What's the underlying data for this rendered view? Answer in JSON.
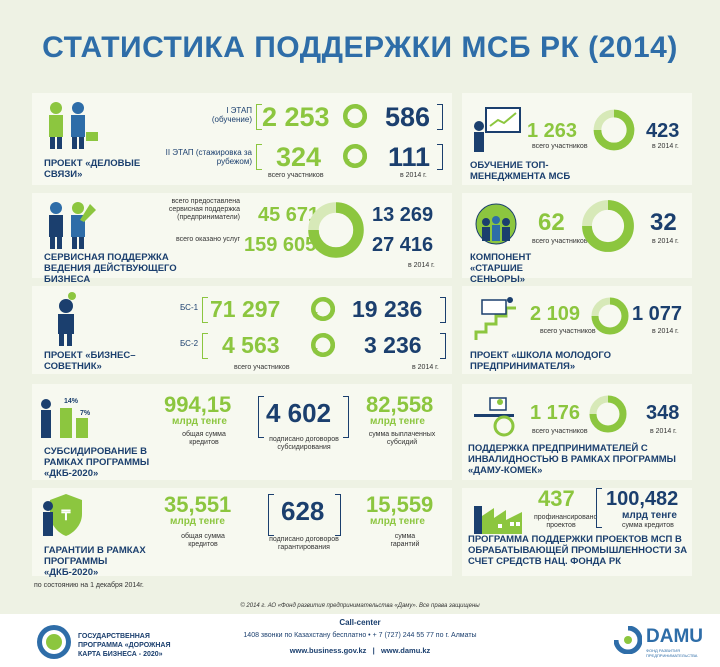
{
  "title": "СТАТИСТИКА ПОДДЕРЖКИ МСБ РК (2014)",
  "colors": {
    "green": "#8cc63f",
    "blue": "#1b3f6e",
    "accent": "#2e6da8"
  },
  "p1": {
    "label": "ПРОЕКТ «ДЕЛОВЫЕ СВЯЗИ»",
    "stage1": "I ЭТАП (обучение)",
    "stage1_a": "2 253",
    "stage1_b": "586",
    "stage2": "II ЭТАП (стажировка за рубежом)",
    "stage2_a": "324",
    "stage2_b": "111",
    "note_total": "всего участников",
    "note_year": "в 2014 г."
  },
  "p2": {
    "label": "ОБУЧЕНИЕ ТОП-МЕНЕДЖМЕНТА МСБ",
    "a": "1 263",
    "b": "423",
    "note_total": "всего участников",
    "note_year": "в 2014 г."
  },
  "p3": {
    "label": "СЕРВИСНАЯ ПОДДЕРЖКА ВЕДЕНИЯ ДЕЙСТВУЮЩЕГО БИЗНЕСА",
    "cap1": "всего предоставлена сервисная поддержка (предприниматели)",
    "cap2": "всего оказано услуг",
    "a1": "45 671",
    "a2": "159 605",
    "b1": "13 269",
    "b2": "27 416",
    "note_year": "в 2014 г."
  },
  "p4": {
    "label": "КОМПОНЕНТ «СТАРШИЕ СЕНЬОРЫ»",
    "a": "62",
    "b": "32",
    "note_total": "всего участников",
    "note_year": "в 2014 г."
  },
  "p5": {
    "label": "ПРОЕКТ «БИЗНЕС–СОВЕТНИК»",
    "bs1": "БС-1",
    "bs2": "БС-2",
    "a1": "71 297",
    "a2": "4 563",
    "b1": "19 236",
    "b2": "3 236",
    "note_total": "всего участников",
    "note_year": "в 2014 г."
  },
  "p6": {
    "label": "ПРОЕКТ «ШКОЛА МОЛОДОГО ПРЕДПРИНИМАТЕЛЯ»",
    "a": "2 109",
    "b": "1 077",
    "note_total": "всего участников",
    "note_year": "в 2014 г."
  },
  "p7": {
    "label": "СУБСИДИРОВАНИЕ В РАМКАХ ПРОГРАММЫ «ДКБ-2020»",
    "pct1": "14%",
    "pct2": "7%",
    "v1": "994,15",
    "v1_unit": "млрд тенге",
    "v1_cap": "общая сумма кредитов",
    "v2": "4 602",
    "v2_cap": "подписано договоров субсидирования",
    "v3": "82,558",
    "v3_unit": "млрд тенге",
    "v3_cap": "сумма выплаченных субсидий"
  },
  "p8": {
    "label": "ПОДДЕРЖКА ПРЕДПРИНИМАТЕЛЕЙ С ИНВАЛИДНОСТЬЮ В РАМКАХ ПРОГРАММЫ «ДАМУ-КОМЕК»",
    "a": "1 176",
    "b": "348",
    "note_total": "всего участников",
    "note_year": "в 2014 г."
  },
  "p9": {
    "label": "ГАРАНТИИ В РАМКАХ ПРОГРАММЫ «ДКБ-2020»",
    "v1": "35,551",
    "v1_unit": "млрд тенге",
    "v1_cap": "общая сумма кредитов",
    "v2": "628",
    "v2_cap": "подписано договоров гарантирования",
    "v3": "15,559",
    "v3_unit": "млрд тенге",
    "v3_cap": "сумма гарантий"
  },
  "p10": {
    "label": "ПРОГРАММА ПОДДЕРЖКИ ПРОЕКТОВ МСП В ОБРАБАТЫВАЮЩЕЙ ПРОМЫШЛЕННОСТИ ЗА СЧЕТ СРЕДСТВ НАЦ. ФОНДА РК",
    "a": "437",
    "a_cap": "профинансировано проектов",
    "b": "100,482",
    "b_unit": "млрд тенге",
    "b_cap": "сумма кредитов"
  },
  "asof": "по состоянию на 1 декабря 2014г.",
  "copyright": "© 2014 г. АО «Фонд развития предпринимательства «Даму». Все права защищены",
  "footer": {
    "program": "ГОСУДАРСТВЕННАЯ ПРОГРАММА «ДОРОЖНАЯ КАРТА БИЗНЕСА - 2020»",
    "call_title": "Call-center",
    "call_text": "1408 звонки по Казахстану бесплатно • + 7 (727) 244 55 77 по г. Алматы",
    "sites": "www.business.gov.kz   |   www.damu.kz",
    "brand": "DAMU",
    "brand_sub": "ФОНД РАЗВИТИЯ ПРЕДПРИНИМАТЕЛЬСТВА"
  }
}
